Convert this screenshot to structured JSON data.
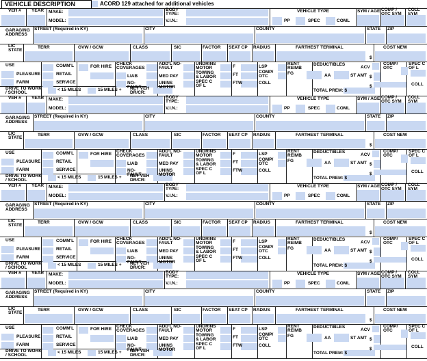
{
  "header": {
    "title": "VEHICLE DESCRIPTION",
    "note": "ACORD 129 attached for additional vehicles"
  },
  "vehicle_form": {
    "veh_no": "VEH #",
    "year": "YEAR",
    "make": "MAKE:",
    "model": "MODEL:",
    "body_type": "BODY TYPE:",
    "vin": "V.I.N.:",
    "vehicle_type": "VEHICLE TYPE",
    "pp": "PP",
    "spec": "SPEC",
    "coml": "COML",
    "sym_age": "SYM / AGE",
    "comp_otc_sym": "COMP / OTC SYM",
    "coll_sym": "COLL SYM",
    "garaging_address": "GARAGING ADDRESS",
    "street": "STREET (Required in KY)",
    "city": "CITY",
    "county": "COUNTY",
    "state": "STATE",
    "zip": "ZIP",
    "lic_state": "LIC STATE",
    "terr": "TERR",
    "gvw_gcw": "GVW / GCW",
    "class": "CLASS",
    "sic": "SIC",
    "factor": "FACTOR",
    "seat_cp": "SEAT CP",
    "radius": "RADIUS",
    "farthest_terminal": "FARTHEST TERMINAL",
    "cost_new": "COST NEW",
    "dollar": "$",
    "use": "USE",
    "pleasure": "PLEASURE",
    "farm": "FARM",
    "comml": "COMM'L",
    "retail": "RETAIL",
    "service": "SERVICE",
    "for_hire": "FOR HIRE",
    "check_coverages": "CHECK COVERAGES",
    "liab": "LIAB",
    "no_fault": "NO-FAULT",
    "addl_no_fault": "ADD'L NO-FAULT",
    "med_pay": "MED PAY",
    "unins_motor": "UNINS MOTOR",
    "undrins_motor": "UNDRINS MOTOR",
    "towing_labor": "TOWING & LABOR",
    "spec_c_of_l": "SPEC C OF L",
    "f": "F",
    "ft": "FT",
    "ftw": "FTW",
    "lsp": "LSP",
    "comp_otc": "COMP/ OTC",
    "coll": "COLL",
    "rent_reimb": "RENT REIMB",
    "fg": "FG",
    "deductibles": "DEDUCTIBLES",
    "aa": "AA",
    "st_amt": "ST AMT",
    "acv": "ACV",
    "drive_to_work": "DRIVE TO WORK / SCHOOL",
    "under_15": "< 15 MILES",
    "over_15": "15 MILES +",
    "net_veh": "NET VEH DR/CR:",
    "total_prem": "TOTAL PREM: $"
  }
}
